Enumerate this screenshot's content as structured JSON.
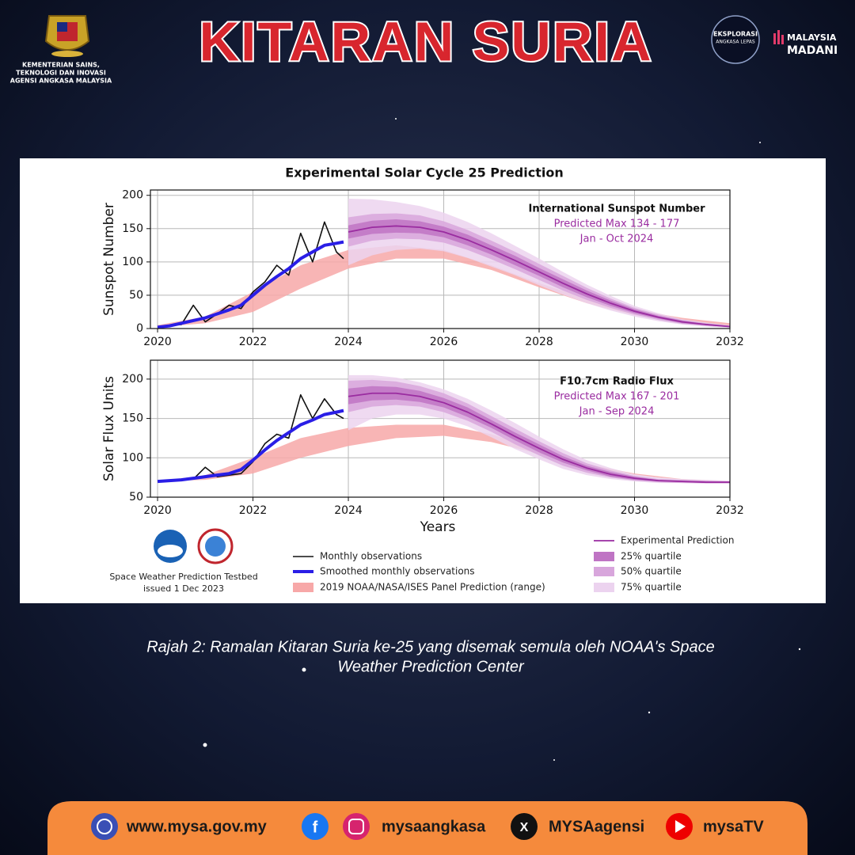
{
  "header": {
    "title": "KITARAN SURIA",
    "ministry_lines": [
      "KEMENTERIAN SAINS,",
      "TEKNOLOGI DAN INOVASI",
      "AGENSI ANGKASA MALAYSIA"
    ],
    "logo_text": [
      "EKSPLORASI",
      "ANGKASA LEPAS"
    ],
    "madani": [
      "MALAYSIA",
      "MADANI"
    ]
  },
  "caption": [
    "Rajah 2: Ramalan Kitaran Suria ke-25 yang disemak semula oleh NOAA's Space",
    "Weather Prediction Center"
  ],
  "credit": [
    "Space Weather Prediction Testbed",
    "issued 1 Dec 2023"
  ],
  "footer": {
    "website": "www.mysa.gov.my",
    "instagram": "mysaangkasa",
    "x": "MYSAagensi",
    "youtube": "mysaTV"
  },
  "chart_data": [
    {
      "type": "line",
      "title": "Experimental Solar Cycle 25 Prediction",
      "ylabel": "Sunspot Number",
      "annotation": [
        "International Sunspot Number",
        "Predicted Max 134 - 177",
        "Jan - Oct 2024"
      ],
      "xlim": [
        2019.85,
        2032
      ],
      "xticks": [
        2020,
        2022,
        2024,
        2026,
        2028,
        2030,
        2032
      ],
      "ylim": [
        0,
        208
      ],
      "yticks": [
        0,
        50,
        100,
        150,
        200
      ],
      "grid": true,
      "series": [
        {
          "name": "Monthly observations",
          "color": "#111111",
          "width": 1.6,
          "x": [
            2020,
            2020.25,
            2020.5,
            2020.75,
            2021,
            2021.25,
            2021.5,
            2021.75,
            2022,
            2022.25,
            2022.5,
            2022.75,
            2023,
            2023.25,
            2023.5,
            2023.75,
            2023.9
          ],
          "values": [
            2,
            5,
            6,
            35,
            10,
            22,
            35,
            30,
            55,
            70,
            95,
            80,
            143,
            100,
            160,
            115,
            105
          ]
        },
        {
          "name": "Smoothed monthly observations",
          "color": "#2a1ee6",
          "width": 4,
          "x": [
            2020,
            2020.25,
            2020.5,
            2020.75,
            2021,
            2021.25,
            2021.5,
            2021.75,
            2022,
            2022.25,
            2022.5,
            2022.75,
            2023,
            2023.25,
            2023.5,
            2023.75,
            2023.9
          ],
          "values": [
            2,
            4,
            8,
            12,
            16,
            22,
            28,
            35,
            50,
            65,
            78,
            90,
            105,
            115,
            125,
            128,
            130
          ]
        },
        {
          "name": "Experimental Prediction",
          "color": "#9a2ca0",
          "width": 1.8,
          "x": [
            2024,
            2024.5,
            2025,
            2025.5,
            2026,
            2026.5,
            2027,
            2027.5,
            2028,
            2028.5,
            2029,
            2029.5,
            2030,
            2030.5,
            2031,
            2031.5,
            2032
          ],
          "values": [
            145,
            152,
            154,
            152,
            145,
            133,
            118,
            102,
            85,
            68,
            52,
            38,
            26,
            17,
            10,
            6,
            3
          ]
        }
      ],
      "bands": [
        {
          "name": "2019 NOAA/NASA/ISES Panel Prediction (range)",
          "color": "#f7a8a8",
          "x": [
            2020,
            2021,
            2022,
            2023,
            2024,
            2025,
            2026,
            2027,
            2028,
            2029,
            2030,
            2031,
            2032
          ],
          "lower": [
            2,
            8,
            25,
            60,
            90,
            105,
            105,
            88,
            62,
            38,
            20,
            10,
            4
          ],
          "upper": [
            5,
            18,
            55,
            95,
            118,
            125,
            118,
            95,
            68,
            45,
            28,
            16,
            8
          ]
        },
        {
          "name": "75% quartile",
          "color": "#ecd3ef",
          "x": [
            2024,
            2024.5,
            2025,
            2025.5,
            2026,
            2026.5,
            2027,
            2027.5,
            2028,
            2028.5,
            2029,
            2029.5,
            2030,
            2030.5,
            2031,
            2031.5,
            2032
          ],
          "lower": [
            95,
            110,
            118,
            120,
            116,
            106,
            93,
            80,
            65,
            51,
            38,
            27,
            18,
            11,
            6,
            3,
            1
          ],
          "upper": [
            195,
            194,
            190,
            184,
            174,
            160,
            143,
            124,
            105,
            85,
            66,
            49,
            34,
            23,
            14,
            9,
            5
          ]
        },
        {
          "name": "50% quartile",
          "color": "#d8a6dc",
          "x": [
            2024,
            2024.5,
            2025,
            2025.5,
            2026,
            2026.5,
            2027,
            2027.5,
            2028,
            2028.5,
            2029,
            2029.5,
            2030,
            2030.5,
            2031,
            2031.5,
            2032
          ],
          "lower": [
            123,
            132,
            135,
            134,
            129,
            118,
            104,
            89,
            73,
            57,
            43,
            31,
            21,
            13,
            7,
            4,
            2
          ],
          "upper": [
            167,
            172,
            173,
            170,
            161,
            148,
            132,
            115,
            97,
            79,
            61,
            45,
            31,
            21,
            13,
            8,
            4
          ]
        },
        {
          "name": "25% quartile",
          "color": "#bf74c4",
          "x": [
            2024,
            2024.5,
            2025,
            2025.5,
            2026,
            2026.5,
            2027,
            2027.5,
            2028,
            2028.5,
            2029,
            2029.5,
            2030,
            2030.5,
            2031,
            2031.5,
            2032
          ],
          "lower": [
            135,
            142,
            144,
            143,
            137,
            125,
            111,
            95,
            79,
            62,
            47,
            34,
            23,
            15,
            8,
            5,
            2
          ],
          "upper": [
            155,
            162,
            164,
            161,
            153,
            141,
            125,
            109,
            91,
            74,
            57,
            42,
            29,
            19,
            12,
            7,
            4
          ]
        }
      ]
    },
    {
      "type": "line",
      "ylabel": "Solar Flux Units",
      "xlabel": "Years",
      "annotation": [
        "F10.7cm Radio Flux",
        "Predicted Max 167 - 201",
        "Jan - Sep 2024"
      ],
      "xlim": [
        2019.85,
        2032
      ],
      "xticks": [
        2020,
        2022,
        2024,
        2026,
        2028,
        2030,
        2032
      ],
      "ylim": [
        50,
        224
      ],
      "yticks": [
        50,
        100,
        150,
        200
      ],
      "grid": true,
      "series": [
        {
          "color": "#111111",
          "width": 1.6,
          "x": [
            2020,
            2020.25,
            2020.5,
            2020.75,
            2021,
            2021.25,
            2021.5,
            2021.75,
            2022,
            2022.25,
            2022.5,
            2022.75,
            2023,
            2023.25,
            2023.5,
            2023.75,
            2023.9
          ],
          "values": [
            70,
            70,
            72,
            73,
            88,
            76,
            78,
            80,
            95,
            118,
            130,
            125,
            180,
            150,
            175,
            155,
            150
          ]
        },
        {
          "color": "#2a1ee6",
          "width": 4,
          "x": [
            2020,
            2020.25,
            2020.5,
            2020.75,
            2021,
            2021.25,
            2021.5,
            2021.75,
            2022,
            2022.25,
            2022.5,
            2022.75,
            2023,
            2023.25,
            2023.5,
            2023.75,
            2023.9
          ],
          "values": [
            70,
            71,
            72,
            74,
            76,
            78,
            80,
            85,
            97,
            110,
            122,
            132,
            142,
            148,
            155,
            158,
            160
          ]
        },
        {
          "color": "#9a2ca0",
          "width": 1.8,
          "x": [
            2024,
            2024.5,
            2025,
            2025.5,
            2026,
            2026.5,
            2027,
            2027.5,
            2028,
            2028.5,
            2029,
            2029.5,
            2030,
            2030.5,
            2031,
            2031.5,
            2032
          ],
          "values": [
            178,
            182,
            182,
            178,
            170,
            158,
            143,
            127,
            112,
            98,
            87,
            79,
            74,
            71,
            70,
            69,
            69
          ]
        }
      ],
      "bands": [
        {
          "color": "#f7a8a8",
          "x": [
            2020,
            2021,
            2022,
            2023,
            2024,
            2025,
            2026,
            2027,
            2028,
            2029,
            2030,
            2031,
            2032
          ],
          "lower": [
            70,
            72,
            80,
            100,
            115,
            125,
            128,
            120,
            105,
            88,
            78,
            72,
            69
          ],
          "upper": [
            70,
            78,
            100,
            125,
            138,
            142,
            142,
            130,
            110,
            92,
            80,
            73,
            70
          ]
        },
        {
          "color": "#ecd3ef",
          "x": [
            2024,
            2024.5,
            2025,
            2025.5,
            2026,
            2026.5,
            2027,
            2027.5,
            2028,
            2028.5,
            2029,
            2029.5,
            2030,
            2030.5,
            2031,
            2031.5,
            2032
          ],
          "lower": [
            135,
            150,
            155,
            155,
            150,
            140,
            126,
            111,
            98,
            86,
            78,
            73,
            70,
            68,
            68,
            67,
            67
          ],
          "upper": [
            205,
            205,
            202,
            196,
            187,
            175,
            160,
            144,
            127,
            111,
            97,
            87,
            79,
            75,
            73,
            72,
            71
          ]
        },
        {
          "color": "#d8a6dc",
          "x": [
            2024,
            2024.5,
            2025,
            2025.5,
            2026,
            2026.5,
            2027,
            2027.5,
            2028,
            2028.5,
            2029,
            2029.5,
            2030,
            2030.5,
            2031,
            2031.5,
            2032
          ],
          "lower": [
            158,
            165,
            167,
            165,
            158,
            147,
            133,
            117,
            103,
            90,
            81,
            75,
            71,
            69,
            68,
            68,
            68
          ],
          "upper": [
            198,
            199,
            197,
            191,
            182,
            169,
            153,
            137,
            121,
            106,
            93,
            84,
            77,
            73,
            72,
            71,
            70
          ]
        },
        {
          "color": "#bf74c4",
          "x": [
            2024,
            2024.5,
            2025,
            2025.5,
            2026,
            2026.5,
            2027,
            2027.5,
            2028,
            2028.5,
            2029,
            2029.5,
            2030,
            2030.5,
            2031,
            2031.5,
            2032
          ],
          "lower": [
            168,
            173,
            174,
            171,
            164,
            152,
            138,
            122,
            107,
            94,
            84,
            76,
            72,
            70,
            69,
            68,
            68
          ],
          "upper": [
            188,
            191,
            190,
            185,
            176,
            164,
            148,
            132,
            117,
            102,
            90,
            82,
            76,
            72,
            71,
            70,
            70
          ]
        }
      ]
    }
  ]
}
